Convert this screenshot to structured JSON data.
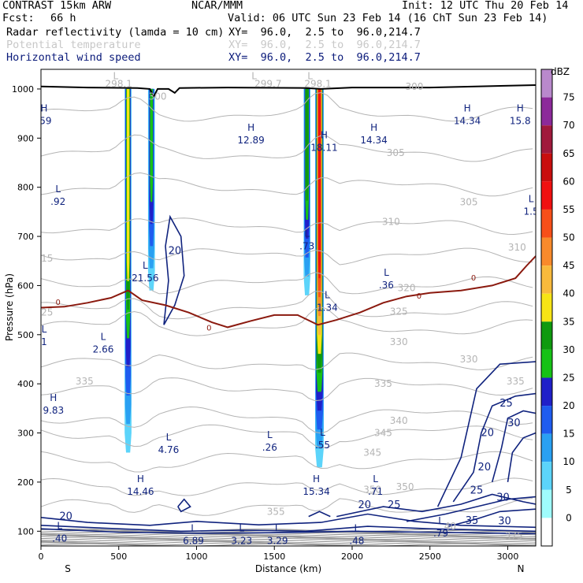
{
  "header": {
    "model": "CONTRAST 15km ARW",
    "org": "NCAR/MMM",
    "init": "Init: 12 UTC Thu 20 Feb 14",
    "fcst_label": "Fcst:",
    "fcst_value": "66 h",
    "valid": "Valid: 06 UTC Sun 23 Feb 14 (16 ChT Sun 23 Feb 14)"
  },
  "fields": [
    {
      "name": "Radar reflectivity (lamda = 10 cm)",
      "xy": "XY=  96.0,  2.5 to  96.0,214.7",
      "color": "#000000"
    },
    {
      "name": "Potential temperature",
      "xy": "XY=  96.0,  2.5 to  96.0,214.7",
      "color": "#c8c8c8"
    },
    {
      "name": "Horizontal wind speed",
      "xy": "XY=  96.0,  2.5 to  96.0,214.7",
      "color": "#0a1a7a"
    }
  ],
  "chart_data": {
    "type": "cross-section",
    "xlabel": "Distance (km)",
    "ylabel": "Pressure (hPa)",
    "xlim": [
      0,
      3180
    ],
    "ylim": [
      1040,
      70
    ],
    "x_ticks": [
      0,
      500,
      1000,
      1500,
      2000,
      2500,
      3000
    ],
    "y_ticks": [
      100,
      200,
      300,
      400,
      500,
      600,
      700,
      800,
      900,
      1000
    ],
    "x_end_labels": {
      "left": "S",
      "right": "N"
    },
    "colorbar": {
      "unit": "dBZ",
      "levels": [
        0,
        5,
        10,
        15,
        20,
        25,
        30,
        35,
        40,
        45,
        50,
        55,
        60,
        65,
        70,
        75
      ],
      "colors": [
        "#ffffff",
        "#9ffcfc",
        "#5cd4fa",
        "#2aa0f2",
        "#1f5cef",
        "#2020c8",
        "#16c216",
        "#0f9a0f",
        "#f7e416",
        "#f9ba3c",
        "#f98a2b",
        "#f74f19",
        "#f01010",
        "#c80e0e",
        "#a0193c",
        "#8c2a9a",
        "#b989cc"
      ]
    },
    "reflectivity_columns": [
      {
        "x": 560,
        "top": 260,
        "base": 1000,
        "max_dbz": 35
      },
      {
        "x": 710,
        "top": 590,
        "base": 1000,
        "max_dbz": 25
      },
      {
        "x": 1790,
        "top": 230,
        "base": 1000,
        "max_dbz": 55
      },
      {
        "x": 1710,
        "top": 580,
        "base": 1000,
        "max_dbz": 30
      }
    ],
    "theta_contour_labels": [
      {
        "label": "355",
        "x": 1510,
        "p": 140
      },
      {
        "label": "350",
        "x": 2340,
        "p": 190
      },
      {
        "label": "350",
        "x": 2130,
        "p": 185
      },
      {
        "label": "345",
        "x": 2130,
        "p": 260
      },
      {
        "label": "345",
        "x": 2200,
        "p": 300
      },
      {
        "label": "340",
        "x": 2300,
        "p": 325
      },
      {
        "label": "335",
        "x": 280,
        "p": 405
      },
      {
        "label": "335",
        "x": 2200,
        "p": 400
      },
      {
        "label": "335",
        "x": 3050,
        "p": 405
      },
      {
        "label": "330",
        "x": 2300,
        "p": 485
      },
      {
        "label": "330",
        "x": 2750,
        "p": 450
      },
      {
        "label": "325",
        "x": 20,
        "p": 545
      },
      {
        "label": "325",
        "x": 2300,
        "p": 547
      },
      {
        "label": "320",
        "x": 2350,
        "p": 595
      },
      {
        "label": "315",
        "x": 20,
        "p": 655
      },
      {
        "label": "310",
        "x": 2250,
        "p": 730
      },
      {
        "label": "310",
        "x": 3060,
        "p": 678
      },
      {
        "label": "305",
        "x": 2750,
        "p": 770
      },
      {
        "label": "305",
        "x": 2280,
        "p": 870
      },
      {
        "label": "300",
        "x": 750,
        "p": 985
      },
      {
        "label": "300",
        "x": 2400,
        "p": 1005
      },
      {
        "label": "298.1",
        "x": 500,
        "p": 1010
      },
      {
        "label": "299.7",
        "x": 1460,
        "p": 1010
      },
      {
        "label": "298.1",
        "x": 1780,
        "p": 1010
      },
      {
        "label": "375",
        "x": 3040,
        "p": 90
      },
      {
        "label": "40",
        "x": 2630,
        "p": 110
      }
    ],
    "wind_contour_labels": [
      {
        "label": "20",
        "x": 160,
        "p": 132
      },
      {
        "label": "20",
        "x": 2080,
        "p": 155
      },
      {
        "label": "25",
        "x": 2270,
        "p": 155
      },
      {
        "label": "25",
        "x": 2800,
        "p": 185
      },
      {
        "label": "30",
        "x": 2970,
        "p": 170
      },
      {
        "label": "30",
        "x": 2980,
        "p": 122
      },
      {
        "label": "35",
        "x": 2770,
        "p": 123
      },
      {
        "label": "20",
        "x": 2850,
        "p": 232
      },
      {
        "label": "20",
        "x": 2870,
        "p": 302
      },
      {
        "label": "30",
        "x": 3040,
        "p": 322
      },
      {
        "label": "25",
        "x": 2990,
        "p": 362
      },
      {
        "label": "20",
        "x": 860,
        "p": 672
      }
    ],
    "zero_isotherm_labels": [
      {
        "label": "0",
        "x": 110,
        "p": 567
      },
      {
        "label": "0",
        "x": 1080,
        "p": 515
      },
      {
        "label": "0",
        "x": 2430,
        "p": 580
      },
      {
        "label": "0",
        "x": 2780,
        "p": 617
      }
    ],
    "highs_lows": [
      {
        "type": "L",
        "value": ".40",
        "x": 120,
        "p": 95
      },
      {
        "type": "L",
        "value": "6.89",
        "x": 980,
        "p": 90
      },
      {
        "type": "L",
        "value": "3.23",
        "x": 1290,
        "p": 90
      },
      {
        "type": "L",
        "value": "3.29",
        "x": 1520,
        "p": 90
      },
      {
        "type": "L",
        "value": ".48",
        "x": 2030,
        "p": 90
      },
      {
        "type": "L",
        "value": ".79",
        "x": 2570,
        "p": 105
      },
      {
        "type": "H",
        "value": "14.46",
        "x": 640,
        "p": 190
      },
      {
        "type": "H",
        "value": "15.34",
        "x": 1770,
        "p": 190
      },
      {
        "type": "L",
        "value": ".71",
        "x": 2150,
        "p": 190
      },
      {
        "type": "L",
        "value": "4.76",
        "x": 820,
        "p": 275
      },
      {
        "type": "L",
        "value": ".26",
        "x": 1470,
        "p": 280
      },
      {
        "type": "L",
        "value": ".55",
        "x": 1810,
        "p": 285
      },
      {
        "type": "H",
        "value": "9.83",
        "x": 80,
        "p": 355
      },
      {
        "type": "L",
        "value": "2.66",
        "x": 400,
        "p": 480
      },
      {
        "type": "L",
        "value": "1",
        "x": 20,
        "p": 495
      },
      {
        "type": "L",
        "value": "1.34",
        "x": 1840,
        "p": 565
      },
      {
        "type": "L",
        "value": ".36",
        "x": 2220,
        "p": 610
      },
      {
        "type": "L",
        "value": "21.56",
        "x": 670,
        "p": 625
      },
      {
        "type": "L",
        "value": ".73",
        "x": 1710,
        "p": 690
      },
      {
        "type": "L",
        "value": ".92",
        "x": 110,
        "p": 780
      },
      {
        "type": "L",
        "value": "1.5",
        "x": 3150,
        "p": 760
      },
      {
        "type": "H",
        "value": "18.11",
        "x": 1820,
        "p": 890
      },
      {
        "type": "H",
        "value": "12.89",
        "x": 1350,
        "p": 905
      },
      {
        "type": "H",
        "value": "14.34",
        "x": 2140,
        "p": 905
      },
      {
        "type": "H",
        "value": "14.34",
        "x": 2740,
        "p": 945
      },
      {
        "type": "H",
        "value": "15.8",
        "x": 3080,
        "p": 945
      },
      {
        "type": "H",
        "value": ".59",
        "x": 20,
        "p": 945
      },
      {
        "type": "L",
        "value": "",
        "x": 480,
        "p": 1010
      },
      {
        "type": "L",
        "value": "",
        "x": 1370,
        "p": 1010
      },
      {
        "type": "L",
        "value": "",
        "x": 1730,
        "p": 1010
      }
    ]
  }
}
